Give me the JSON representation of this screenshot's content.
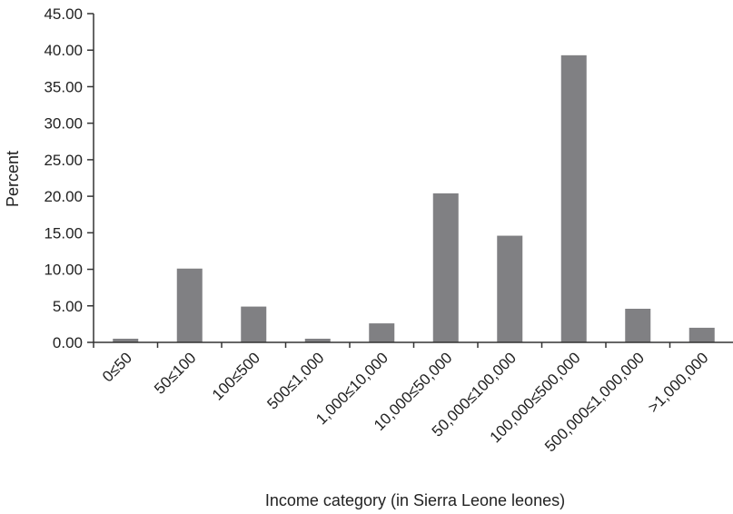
{
  "chart_data": {
    "type": "bar",
    "title": "",
    "xlabel": "Income category (in Sierra Leone leones)",
    "ylabel": "Percent",
    "ylim": [
      0,
      45
    ],
    "yticks": [
      "0.00",
      "5.00",
      "10.00",
      "15.00",
      "20.00",
      "25.00",
      "30.00",
      "35.00",
      "40.00",
      "45.00"
    ],
    "categories": [
      "0≤50",
      "50≤100",
      "100≤500",
      "500≤1,000",
      "1,000≤10,000",
      "10,000≤50,000",
      "50,000≤100,000",
      "100,000≤500,000",
      "500,000≤1,000,000",
      ">1,000,000"
    ],
    "values": [
      0.5,
      10.1,
      4.9,
      0.5,
      2.6,
      20.4,
      14.6,
      39.3,
      4.6,
      2.0
    ],
    "bar_color": "#808083",
    "axis_color": "#333333",
    "grid": false,
    "legend": "none"
  }
}
